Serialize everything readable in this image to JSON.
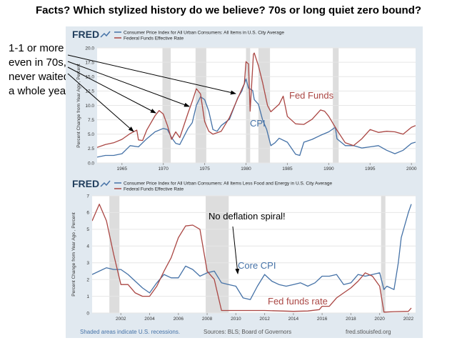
{
  "title": "Facts? Which stylized history do we believe? 70s or long quiet zero bound?",
  "side_note": [
    "1-1 or more",
    "even in 70s,",
    "never waited",
    "a whole year"
  ],
  "footer": {
    "recessions_note": "Shaded areas indicate U.S. recessions.",
    "sources": "Sources: BLS; Board of Governors",
    "site": "fred.stlouisfed.org"
  },
  "colors": {
    "cpi": "#4572a7",
    "fedfunds": "#aa4643",
    "recession": "#dddddd",
    "panel": "#e1e9f0",
    "footer_text": "#4572a7"
  },
  "chart_data": [
    {
      "type": "line",
      "brand": "FRED",
      "legend": [
        "Consumer Price Index for All Urban Consumers: All Items in U.S. City Average",
        "Federal Funds Effective Rate"
      ],
      "ylabel": "Percent Change from Year Ago , Percent",
      "xlim": [
        1962,
        2000.5
      ],
      "ylim": [
        0,
        20
      ],
      "yticks": [
        "0.0",
        "2.5",
        "5.0",
        "7.5",
        "10.0",
        "12.5",
        "15.0",
        "17.5",
        "20.0"
      ],
      "xticks": [
        "1965",
        "1970",
        "1975",
        "1980",
        "1985",
        "1990",
        "1995",
        "2000"
      ],
      "recessions": [
        [
          1969.9,
          1970.9
        ],
        [
          1973.9,
          1975.2
        ],
        [
          1980.0,
          1980.5
        ],
        [
          1981.5,
          1982.9
        ],
        [
          1990.5,
          1991.2
        ]
      ],
      "series": [
        {
          "name": "CPI",
          "label": "CPI",
          "x": [
            1962,
            1963,
            1964,
            1965,
            1966,
            1967,
            1968,
            1969,
            1970,
            1970.5,
            1971,
            1971.5,
            1972,
            1973,
            1973.5,
            1974,
            1974.5,
            1975,
            1975.5,
            1976,
            1976.5,
            1977,
            1978,
            1979,
            1979.5,
            1980,
            1980.3,
            1980.8,
            1981,
            1981.5,
            1982,
            1982.5,
            1983,
            1983.5,
            1984,
            1985,
            1986,
            1986.5,
            1987,
            1988,
            1989,
            1990,
            1990.8,
            1991,
            1992,
            1993,
            1994,
            1995,
            1996,
            1997,
            1998,
            1999,
            2000,
            2000.5
          ],
          "values": [
            1.0,
            1.3,
            1.3,
            1.6,
            3.0,
            2.8,
            4.2,
            5.4,
            6.0,
            5.8,
            4.4,
            3.4,
            3.2,
            6.0,
            7.0,
            10.0,
            11.5,
            11.0,
            9.0,
            5.8,
            5.5,
            6.5,
            7.6,
            11.3,
            12.5,
            14.6,
            13.0,
            12.6,
            11.0,
            10.2,
            7.5,
            5.8,
            3.0,
            3.5,
            4.3,
            3.6,
            1.5,
            1.3,
            3.6,
            4.1,
            4.8,
            5.4,
            6.2,
            4.2,
            3.0,
            3.0,
            2.6,
            2.8,
            3.0,
            2.2,
            1.6,
            2.2,
            3.4,
            3.6
          ]
        },
        {
          "name": "Federal Funds Effective Rate",
          "label": "Fed Funds",
          "x": [
            1962,
            1963,
            1964,
            1965,
            1966,
            1966.8,
            1967,
            1967.5,
            1968,
            1969,
            1969.5,
            1970,
            1970.5,
            1971,
            1971.5,
            1972,
            1973,
            1973.5,
            1974,
            1974.5,
            1975,
            1975.5,
            1976,
            1977,
            1978,
            1979,
            1979.8,
            1980,
            1980.3,
            1980.5,
            1980.9,
            1981,
            1981.5,
            1982,
            1982.6,
            1983,
            1984,
            1984.5,
            1985,
            1986,
            1987,
            1988,
            1989,
            1989.5,
            1990,
            1991,
            1992,
            1993,
            1994,
            1995,
            1996,
            1997,
            1998,
            1999,
            2000,
            2000.5
          ],
          "values": [
            2.7,
            3.2,
            3.5,
            4.1,
            5.1,
            5.7,
            4.0,
            3.9,
            5.7,
            8.2,
            9.1,
            8.5,
            6.5,
            4.1,
            5.4,
            4.4,
            8.7,
            10.7,
            12.9,
            12.0,
            7.2,
            5.5,
            5.0,
            5.5,
            7.9,
            11.2,
            13.8,
            17.6,
            17.2,
            9.0,
            18.9,
            19.1,
            16.9,
            14.0,
            10.0,
            8.9,
            10.2,
            11.6,
            8.1,
            6.8,
            6.7,
            7.6,
            9.2,
            9.0,
            8.1,
            5.7,
            3.5,
            3.0,
            4.2,
            5.8,
            5.3,
            5.5,
            5.4,
            5.0,
            6.2,
            6.5
          ]
        }
      ],
      "annotations": [
        "Fed Funds",
        "CPI"
      ]
    },
    {
      "type": "line",
      "brand": "FRED",
      "legend": [
        "Consumer Price Index for All Urban Consumers: All Items Less Food and Energy in U.S. City Average",
        "Federal Funds Effective Rate"
      ],
      "ylabel": "Percent Change from Year Ago , Percent",
      "xlim": [
        2000,
        2022.5
      ],
      "ylim": [
        0,
        7
      ],
      "yticks": [
        "0",
        "1",
        "2",
        "3",
        "4",
        "5",
        "6",
        "7"
      ],
      "xticks": [
        "2002",
        "2004",
        "2006",
        "2008",
        "2010",
        "2012",
        "2014",
        "2016",
        "2018",
        "2020",
        "2022"
      ],
      "recessions": [
        [
          2001.2,
          2001.9
        ],
        [
          2007.9,
          2009.5
        ],
        [
          2020.1,
          2020.4
        ]
      ],
      "series": [
        {
          "name": "Core CPI",
          "label": "Core CPI",
          "x": [
            2000,
            2000.5,
            2001,
            2001.5,
            2002,
            2002.5,
            2003,
            2003.5,
            2004,
            2004.5,
            2005,
            2005.5,
            2006,
            2006.5,
            2007,
            2007.5,
            2008,
            2008.5,
            2009,
            2009.5,
            2010,
            2010.5,
            2011,
            2011.5,
            2012,
            2012.5,
            2013,
            2013.5,
            2014,
            2014.5,
            2015,
            2015.5,
            2016,
            2016.5,
            2017,
            2017.5,
            2018,
            2018.5,
            2019,
            2019.5,
            2020,
            2020.3,
            2020.5,
            2021,
            2021.3,
            2021.5,
            2022,
            2022.2
          ],
          "values": [
            2.3,
            2.5,
            2.7,
            2.6,
            2.6,
            2.3,
            1.9,
            1.5,
            1.2,
            1.8,
            2.3,
            2.1,
            2.1,
            2.8,
            2.6,
            2.2,
            2.4,
            2.5,
            1.8,
            1.7,
            1.6,
            0.9,
            0.8,
            1.6,
            2.3,
            1.9,
            1.7,
            1.6,
            1.7,
            1.8,
            1.6,
            1.8,
            2.2,
            2.2,
            2.3,
            1.7,
            1.8,
            2.3,
            2.2,
            2.3,
            2.4,
            1.4,
            1.6,
            1.4,
            3.0,
            4.5,
            6.0,
            6.5
          ]
        },
        {
          "name": "Federal Funds Effective Rate",
          "label": "Fed funds rate",
          "x": [
            2000,
            2000.5,
            2001,
            2001.5,
            2002,
            2002.5,
            2003,
            2003.5,
            2004,
            2004.5,
            2005,
            2005.5,
            2006,
            2006.5,
            2007,
            2007.5,
            2008,
            2008.5,
            2009,
            2010,
            2012,
            2014,
            2015,
            2015.8,
            2016,
            2016.5,
            2017,
            2017.5,
            2018,
            2018.5,
            2019,
            2019.5,
            2020,
            2020.3,
            2021,
            2022,
            2022.2
          ],
          "values": [
            5.5,
            6.5,
            5.5,
            3.5,
            1.7,
            1.7,
            1.2,
            1.0,
            1.0,
            1.6,
            2.5,
            3.3,
            4.5,
            5.2,
            5.25,
            5.0,
            2.5,
            2.0,
            0.15,
            0.15,
            0.15,
            0.1,
            0.12,
            0.2,
            0.4,
            0.4,
            0.9,
            1.2,
            1.5,
            1.9,
            2.4,
            2.2,
            1.6,
            0.05,
            0.08,
            0.1,
            0.3
          ]
        }
      ],
      "annotations": [
        "No deflation spiral!",
        "Core CPI",
        "Fed funds rate"
      ]
    }
  ]
}
